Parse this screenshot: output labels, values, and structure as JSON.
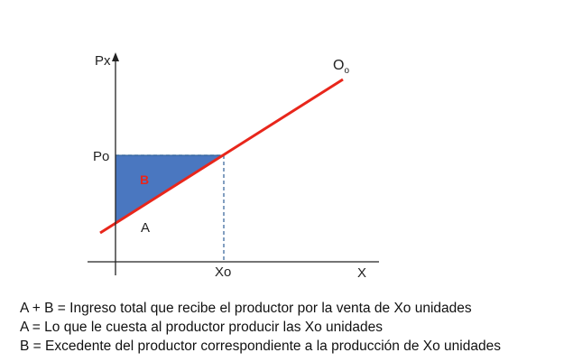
{
  "diagram": {
    "y_axis_label": "Px",
    "x_axis_label": "X",
    "price_label": "Po",
    "quantity_label": "Xo",
    "supply_label_main": "O",
    "supply_label_sub": "o",
    "region_b_label": "B",
    "region_a_label": "A",
    "colors": {
      "supply_line": "#e8261b",
      "region_b_fill": "#4a77c0",
      "region_b_label": "#e8261b",
      "dashed_lines": "#2f5f96",
      "axes": "#222222"
    }
  },
  "legend": {
    "line1": "A + B = Ingreso total que recibe el productor por la venta de Xo unidades",
    "line2": "A = Lo que le cuesta al productor producir las Xo unidades",
    "line3": "B = Excedente del productor correspondiente a la producción de Xo unidades"
  }
}
